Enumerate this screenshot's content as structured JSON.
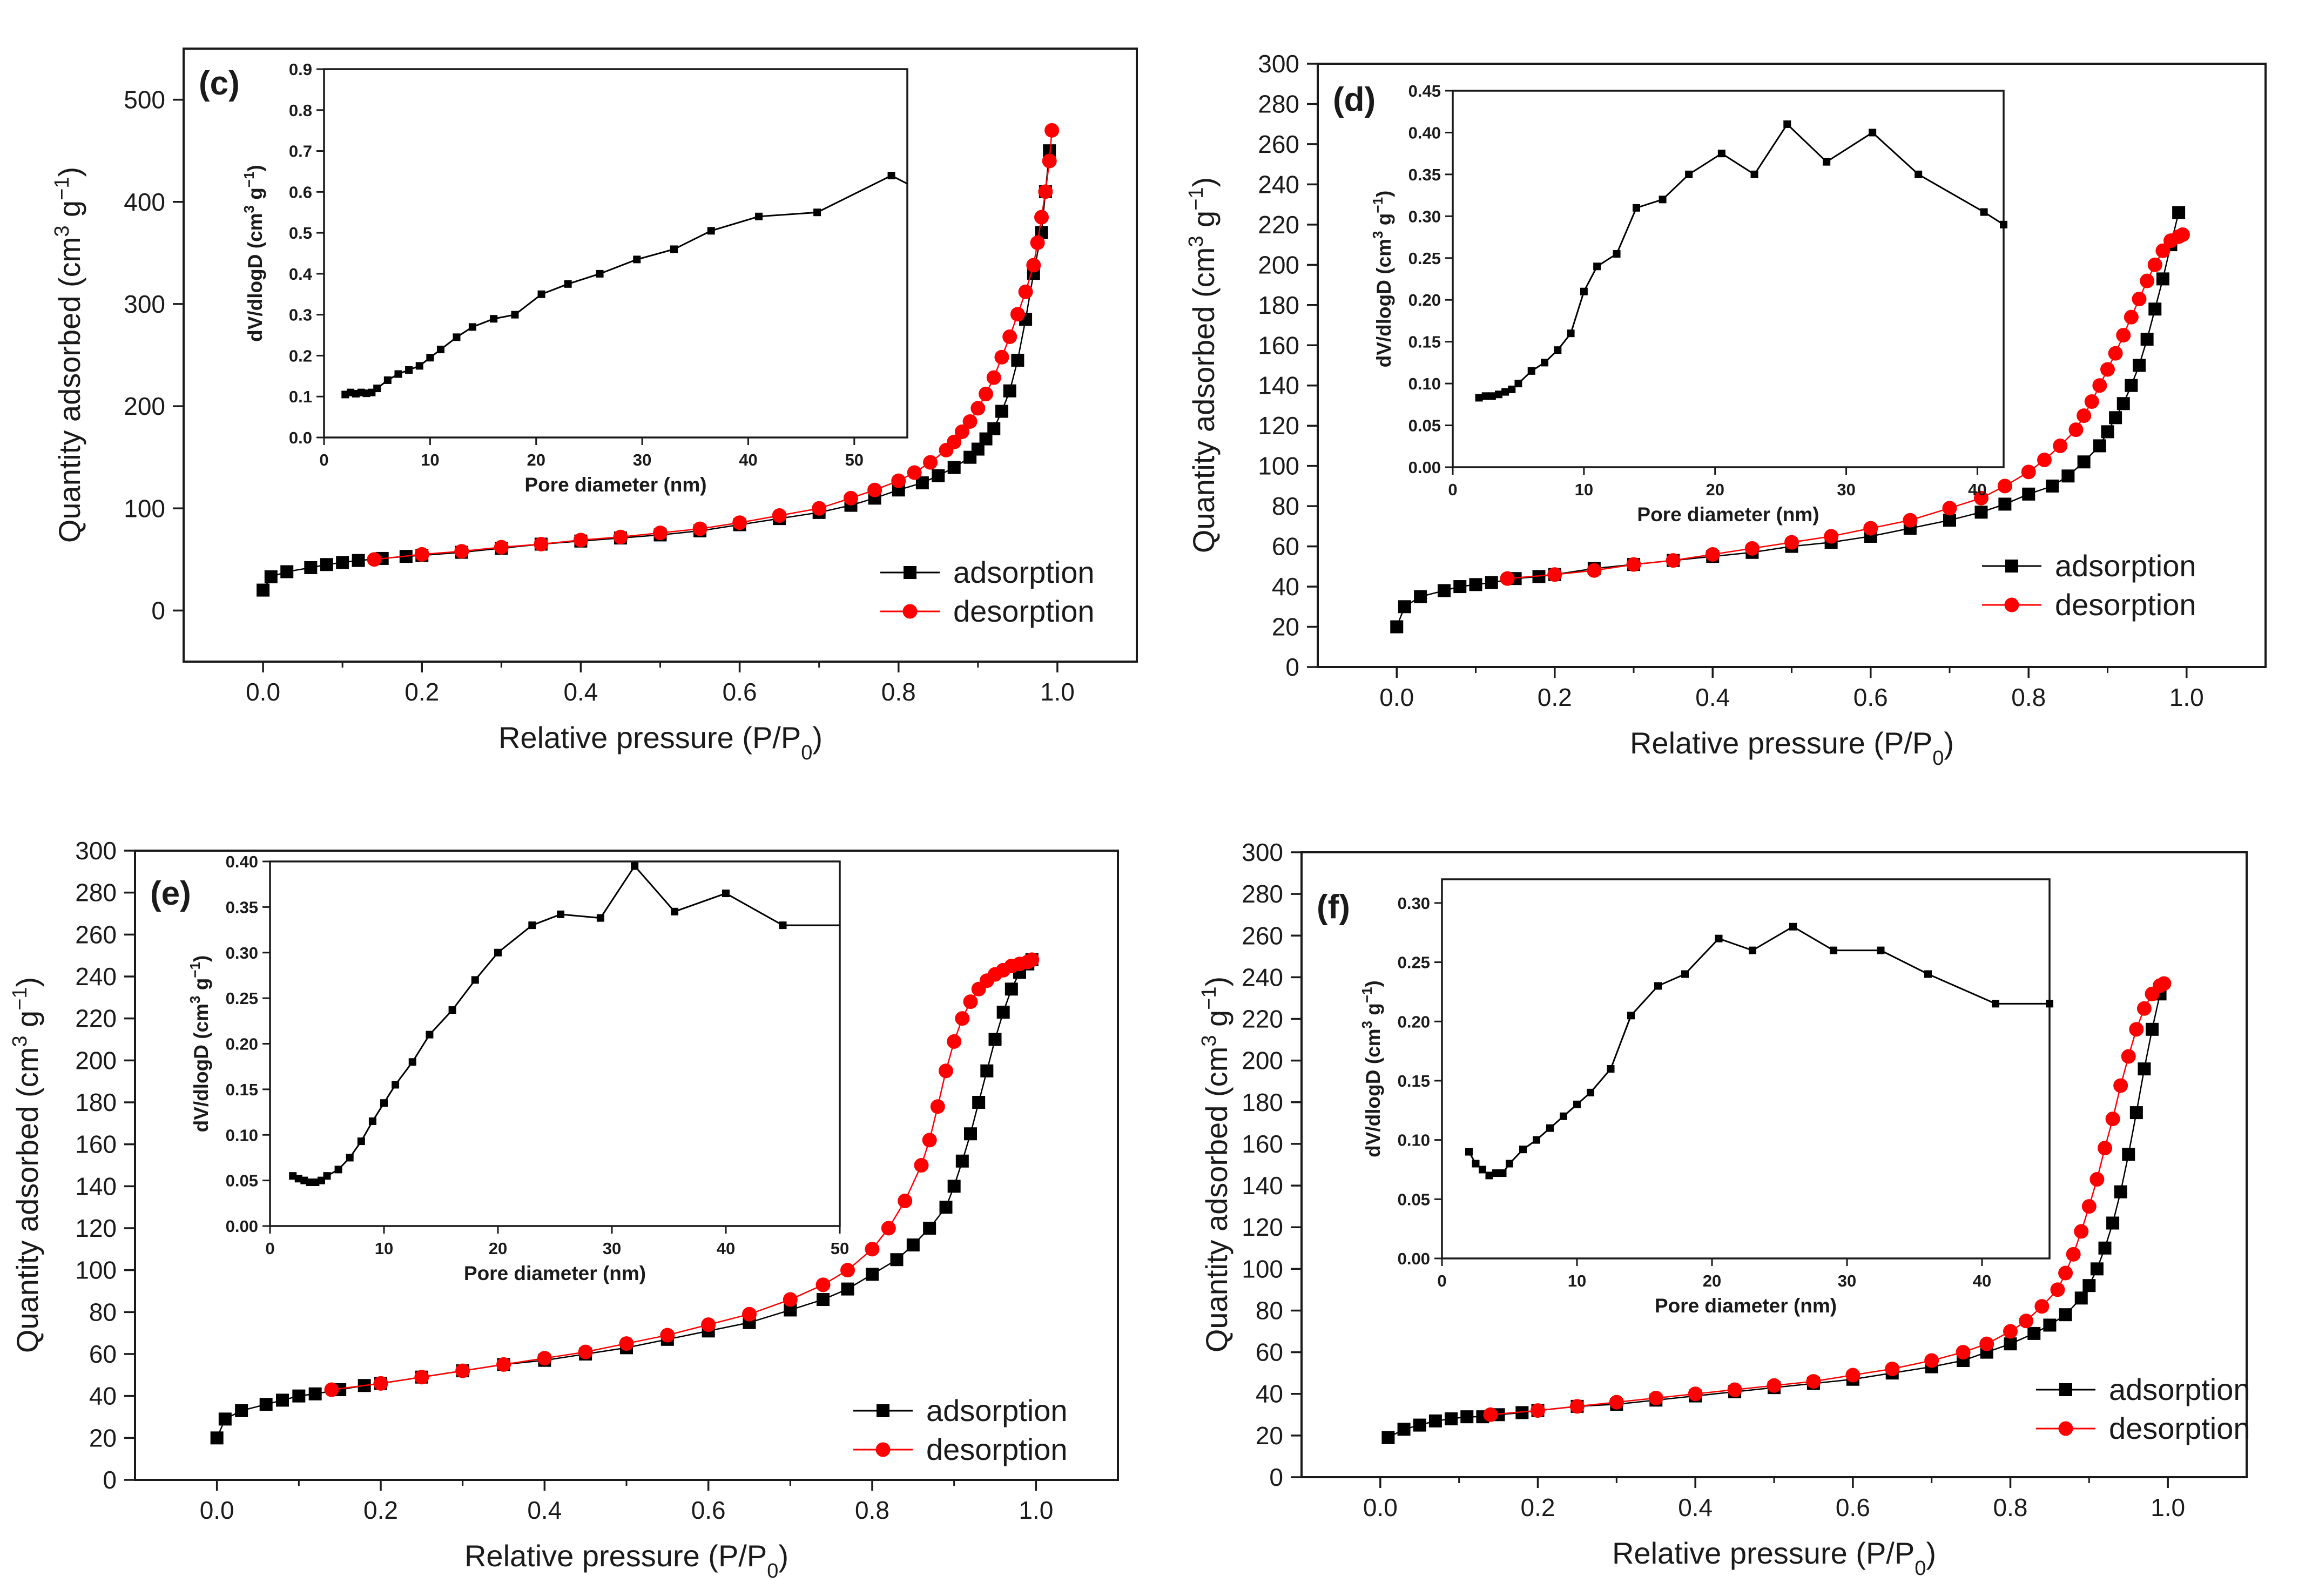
{
  "x_axis_title": "Relative pressure (P/P",
  "x_axis_title_sub": "0",
  "x_axis_title_end": ")",
  "y_axis_title": "Quantity adsorbed (cm",
  "y_axis_title_sup1": "3",
  "y_axis_title_mid": " g",
  "y_axis_title_sup2": "−1",
  "y_axis_title_end": ")",
  "inset_x_title": "Pore diameter (nm)",
  "inset_y_title": "dV/dlogD (cm",
  "inset_y_title_sup1": "3",
  "inset_y_title_mid": " g",
  "inset_y_title_sup2": "−1",
  "inset_y_title_end": ")",
  "legend": {
    "adsorption": "adsorption",
    "desorption": "desorption"
  },
  "colors": {
    "adsorption": "#000000",
    "desorption": "#ff0000",
    "inset_line": "#000000"
  },
  "chart_data": [
    {
      "panel": "(c)",
      "type": "scatter",
      "xlim": [
        -0.1,
        1.1
      ],
      "ylim": [
        -50,
        550
      ],
      "xticks": [
        0.0,
        0.2,
        0.4,
        0.6,
        0.8,
        1.0
      ],
      "yticks": [
        0,
        100,
        200,
        300,
        400,
        500
      ],
      "series": [
        {
          "name": "adsorption",
          "x": [
            0.0,
            0.01,
            0.03,
            0.06,
            0.08,
            0.1,
            0.12,
            0.15,
            0.18,
            0.2,
            0.25,
            0.3,
            0.35,
            0.4,
            0.45,
            0.5,
            0.55,
            0.6,
            0.65,
            0.7,
            0.74,
            0.77,
            0.8,
            0.83,
            0.85,
            0.87,
            0.89,
            0.9,
            0.91,
            0.92,
            0.93,
            0.94,
            0.95,
            0.96,
            0.97,
            0.98,
            0.985,
            0.99
          ],
          "y": [
            20,
            33,
            38,
            42,
            45,
            47,
            49,
            51,
            53,
            54,
            57,
            61,
            65,
            68,
            71,
            74,
            78,
            84,
            90,
            96,
            103,
            110,
            118,
            125,
            132,
            140,
            150,
            158,
            168,
            178,
            195,
            215,
            245,
            285,
            330,
            370,
            410,
            450
          ]
        },
        {
          "name": "desorption",
          "x": [
            0.14,
            0.2,
            0.25,
            0.3,
            0.35,
            0.4,
            0.45,
            0.5,
            0.55,
            0.6,
            0.65,
            0.7,
            0.74,
            0.77,
            0.8,
            0.82,
            0.84,
            0.86,
            0.87,
            0.88,
            0.89,
            0.9,
            0.91,
            0.92,
            0.93,
            0.94,
            0.95,
            0.96,
            0.97,
            0.975,
            0.98,
            0.985,
            0.99,
            0.993
          ],
          "y": [
            50,
            55,
            58,
            62,
            65,
            69,
            72,
            76,
            80,
            86,
            93,
            100,
            110,
            118,
            127,
            135,
            145,
            157,
            165,
            175,
            185,
            198,
            212,
            228,
            248,
            268,
            290,
            312,
            338,
            360,
            385,
            410,
            440,
            470
          ]
        }
      ],
      "inset": {
        "type": "line",
        "xlim": [
          0,
          55
        ],
        "ylim": [
          0,
          0.9
        ],
        "xticks": [
          0,
          10,
          20,
          30,
          40,
          50
        ],
        "yticks": [
          0.0,
          0.1,
          0.2,
          0.3,
          0.4,
          0.5,
          0.6,
          0.7,
          0.8,
          0.9
        ],
        "x": [
          2,
          2.5,
          3,
          3.5,
          4,
          4.5,
          5,
          6,
          7,
          8,
          9,
          10,
          11,
          12.5,
          14,
          16,
          18,
          20.5,
          23,
          26,
          29.5,
          33,
          36.5,
          41,
          46.5,
          53.5,
          55
        ],
        "y": [
          0.105,
          0.11,
          0.107,
          0.11,
          0.108,
          0.11,
          0.12,
          0.14,
          0.155,
          0.165,
          0.175,
          0.195,
          0.215,
          0.245,
          0.27,
          0.29,
          0.3,
          0.35,
          0.375,
          0.4,
          0.435,
          0.46,
          0.505,
          0.54,
          0.55,
          0.64,
          0.62
        ],
        "markers_until": 25
      }
    },
    {
      "panel": "(d)",
      "type": "scatter",
      "xlim": [
        -0.1,
        1.1
      ],
      "ylim": [
        0,
        300
      ],
      "xticks": [
        0.0,
        0.2,
        0.4,
        0.6,
        0.8,
        1.0
      ],
      "yticks": [
        0,
        20,
        40,
        60,
        80,
        100,
        120,
        140,
        160,
        180,
        200,
        220,
        240,
        260,
        280,
        300
      ],
      "series": [
        {
          "name": "adsorption",
          "x": [
            0.0,
            0.01,
            0.03,
            0.06,
            0.08,
            0.1,
            0.12,
            0.15,
            0.18,
            0.2,
            0.25,
            0.3,
            0.35,
            0.4,
            0.45,
            0.5,
            0.55,
            0.6,
            0.65,
            0.7,
            0.74,
            0.77,
            0.8,
            0.83,
            0.85,
            0.87,
            0.89,
            0.9,
            0.91,
            0.92,
            0.93,
            0.94,
            0.95,
            0.96,
            0.97,
            0.98,
            0.99
          ],
          "y": [
            20,
            30,
            35,
            38,
            40,
            41,
            42,
            44,
            45,
            46,
            49,
            51,
            53,
            55,
            57,
            60,
            62,
            65,
            69,
            73,
            77,
            81,
            86,
            90,
            95,
            102,
            110,
            117,
            124,
            131,
            140,
            150,
            163,
            178,
            193,
            210,
            226
          ]
        },
        {
          "name": "desorption",
          "x": [
            0.14,
            0.2,
            0.25,
            0.3,
            0.35,
            0.4,
            0.45,
            0.5,
            0.55,
            0.6,
            0.65,
            0.7,
            0.74,
            0.77,
            0.8,
            0.82,
            0.84,
            0.86,
            0.87,
            0.88,
            0.89,
            0.9,
            0.91,
            0.92,
            0.93,
            0.94,
            0.95,
            0.96,
            0.97,
            0.98,
            0.99,
            0.995
          ],
          "y": [
            44,
            46,
            48,
            51,
            53,
            56,
            59,
            62,
            65,
            69,
            73,
            79,
            84,
            90,
            97,
            103,
            110,
            118,
            125,
            132,
            140,
            148,
            156,
            165,
            174,
            183,
            192,
            200,
            207,
            212,
            214,
            215
          ]
        }
      ],
      "inset": {
        "type": "line",
        "xlim": [
          0,
          42
        ],
        "ylim": [
          0,
          0.45
        ],
        "xticks": [
          0,
          10,
          20,
          30,
          40
        ],
        "yticks": [
          0.0,
          0.05,
          0.1,
          0.15,
          0.2,
          0.25,
          0.3,
          0.35,
          0.4,
          0.45
        ],
        "x": [
          2,
          2.5,
          3,
          3.5,
          4,
          4.5,
          5,
          6,
          7,
          8,
          9,
          10,
          11,
          12.5,
          14,
          16,
          18,
          20.5,
          23,
          25.5,
          28.5,
          32,
          35.5,
          40.5,
          42
        ],
        "y": [
          0.083,
          0.085,
          0.085,
          0.087,
          0.09,
          0.093,
          0.1,
          0.115,
          0.125,
          0.14,
          0.16,
          0.21,
          0.24,
          0.255,
          0.31,
          0.32,
          0.35,
          0.375,
          0.35,
          0.41,
          0.365,
          0.4,
          0.35,
          0.305,
          0.29
        ],
        "markers_until": 24
      }
    },
    {
      "panel": "(e)",
      "type": "scatter",
      "xlim": [
        -0.1,
        1.1
      ],
      "ylim": [
        0,
        300
      ],
      "xticks": [
        0.0,
        0.2,
        0.4,
        0.6,
        0.8,
        1.0
      ],
      "yticks": [
        0,
        20,
        40,
        60,
        80,
        100,
        120,
        140,
        160,
        180,
        200,
        220,
        240,
        260,
        280,
        300
      ],
      "series": [
        {
          "name": "adsorption",
          "x": [
            0.0,
            0.01,
            0.03,
            0.06,
            0.08,
            0.1,
            0.12,
            0.15,
            0.18,
            0.2,
            0.25,
            0.3,
            0.35,
            0.4,
            0.45,
            0.5,
            0.55,
            0.6,
            0.65,
            0.7,
            0.74,
            0.77,
            0.8,
            0.83,
            0.85,
            0.87,
            0.89,
            0.9,
            0.91,
            0.92,
            0.93,
            0.94,
            0.95,
            0.96,
            0.97,
            0.98,
            0.99,
            0.995
          ],
          "y": [
            20,
            29,
            33,
            36,
            38,
            40,
            41,
            43,
            45,
            46,
            49,
            52,
            55,
            57,
            60,
            63,
            67,
            71,
            75,
            81,
            86,
            91,
            98,
            105,
            112,
            120,
            130,
            140,
            152,
            165,
            180,
            195,
            210,
            223,
            234,
            242,
            246,
            248
          ]
        },
        {
          "name": "desorption",
          "x": [
            0.14,
            0.2,
            0.25,
            0.3,
            0.35,
            0.4,
            0.45,
            0.5,
            0.55,
            0.6,
            0.65,
            0.7,
            0.74,
            0.77,
            0.8,
            0.82,
            0.84,
            0.86,
            0.87,
            0.88,
            0.89,
            0.9,
            0.91,
            0.92,
            0.93,
            0.94,
            0.95,
            0.96,
            0.97,
            0.98,
            0.99,
            0.995
          ],
          "y": [
            43,
            46,
            49,
            52,
            55,
            58,
            61,
            65,
            69,
            74,
            79,
            86,
            93,
            100,
            110,
            120,
            133,
            150,
            162,
            178,
            195,
            209,
            220,
            228,
            234,
            238,
            241,
            243,
            245,
            246,
            247,
            248
          ]
        }
      ],
      "inset": {
        "type": "line",
        "xlim": [
          0,
          50
        ],
        "ylim": [
          0,
          0.4
        ],
        "xticks": [
          0,
          10,
          20,
          30,
          40,
          50
        ],
        "yticks": [
          0.0,
          0.05,
          0.1,
          0.15,
          0.2,
          0.25,
          0.3,
          0.35,
          0.4
        ],
        "x": [
          2,
          2.5,
          3,
          3.5,
          4,
          4.5,
          5,
          6,
          7,
          8,
          9,
          10,
          11,
          12.5,
          14,
          16,
          18,
          20,
          23,
          25.5,
          29,
          32,
          35.5,
          40,
          45,
          50
        ],
        "y": [
          0.055,
          0.052,
          0.05,
          0.048,
          0.048,
          0.05,
          0.055,
          0.062,
          0.075,
          0.093,
          0.115,
          0.135,
          0.155,
          0.18,
          0.21,
          0.237,
          0.27,
          0.3,
          0.33,
          0.342,
          0.338,
          0.395,
          0.345,
          0.365,
          0.33,
          0.33
        ],
        "markers_until": 24
      }
    },
    {
      "panel": "(f)",
      "type": "scatter",
      "xlim": [
        -0.1,
        1.1
      ],
      "ylim": [
        0,
        300
      ],
      "xticks": [
        0.0,
        0.2,
        0.4,
        0.6,
        0.8,
        1.0
      ],
      "yticks": [
        0,
        20,
        40,
        60,
        80,
        100,
        120,
        140,
        160,
        180,
        200,
        220,
        240,
        260,
        280,
        300
      ],
      "series": [
        {
          "name": "adsorption",
          "x": [
            0.01,
            0.03,
            0.05,
            0.07,
            0.09,
            0.11,
            0.13,
            0.15,
            0.18,
            0.2,
            0.25,
            0.3,
            0.35,
            0.4,
            0.45,
            0.5,
            0.55,
            0.6,
            0.65,
            0.7,
            0.74,
            0.77,
            0.8,
            0.83,
            0.85,
            0.87,
            0.89,
            0.9,
            0.91,
            0.92,
            0.93,
            0.94,
            0.95,
            0.96,
            0.97,
            0.98,
            0.99
          ],
          "y": [
            19,
            23,
            25,
            27,
            28,
            29,
            29,
            30,
            31,
            32,
            34,
            35,
            37,
            39,
            41,
            43,
            45,
            47,
            50,
            53,
            56,
            60,
            64,
            69,
            73,
            78,
            86,
            92,
            100,
            110,
            122,
            137,
            155,
            175,
            196,
            215,
            232
          ]
        },
        {
          "name": "desorption",
          "x": [
            0.14,
            0.2,
            0.25,
            0.3,
            0.35,
            0.4,
            0.45,
            0.5,
            0.55,
            0.6,
            0.65,
            0.7,
            0.74,
            0.77,
            0.8,
            0.82,
            0.84,
            0.86,
            0.87,
            0.88,
            0.89,
            0.9,
            0.91,
            0.92,
            0.93,
            0.94,
            0.95,
            0.96,
            0.97,
            0.98,
            0.99,
            0.995
          ],
          "y": [
            30,
            32,
            34,
            36,
            38,
            40,
            42,
            44,
            46,
            49,
            52,
            56,
            60,
            64,
            70,
            75,
            82,
            90,
            98,
            107,
            118,
            130,
            143,
            158,
            172,
            188,
            202,
            215,
            225,
            232,
            236,
            237
          ]
        }
      ],
      "inset": {
        "type": "line",
        "xlim": [
          0,
          45
        ],
        "ylim": [
          0,
          0.32
        ],
        "xticks": [
          0,
          10,
          20,
          30,
          40
        ],
        "yticks": [
          0.0,
          0.05,
          0.1,
          0.15,
          0.2,
          0.25,
          0.3
        ],
        "x": [
          2,
          2.5,
          3,
          3.5,
          4,
          4.5,
          5,
          6,
          7,
          8,
          9,
          10,
          11,
          12.5,
          14,
          16,
          18,
          20.5,
          23,
          26,
          29,
          32.5,
          36,
          41,
          45
        ],
        "y": [
          0.09,
          0.08,
          0.075,
          0.07,
          0.072,
          0.072,
          0.08,
          0.092,
          0.1,
          0.11,
          0.12,
          0.13,
          0.14,
          0.16,
          0.205,
          0.23,
          0.24,
          0.27,
          0.26,
          0.28,
          0.26,
          0.26,
          0.24,
          0.215,
          0.215
        ],
        "markers_until": 24
      }
    }
  ]
}
